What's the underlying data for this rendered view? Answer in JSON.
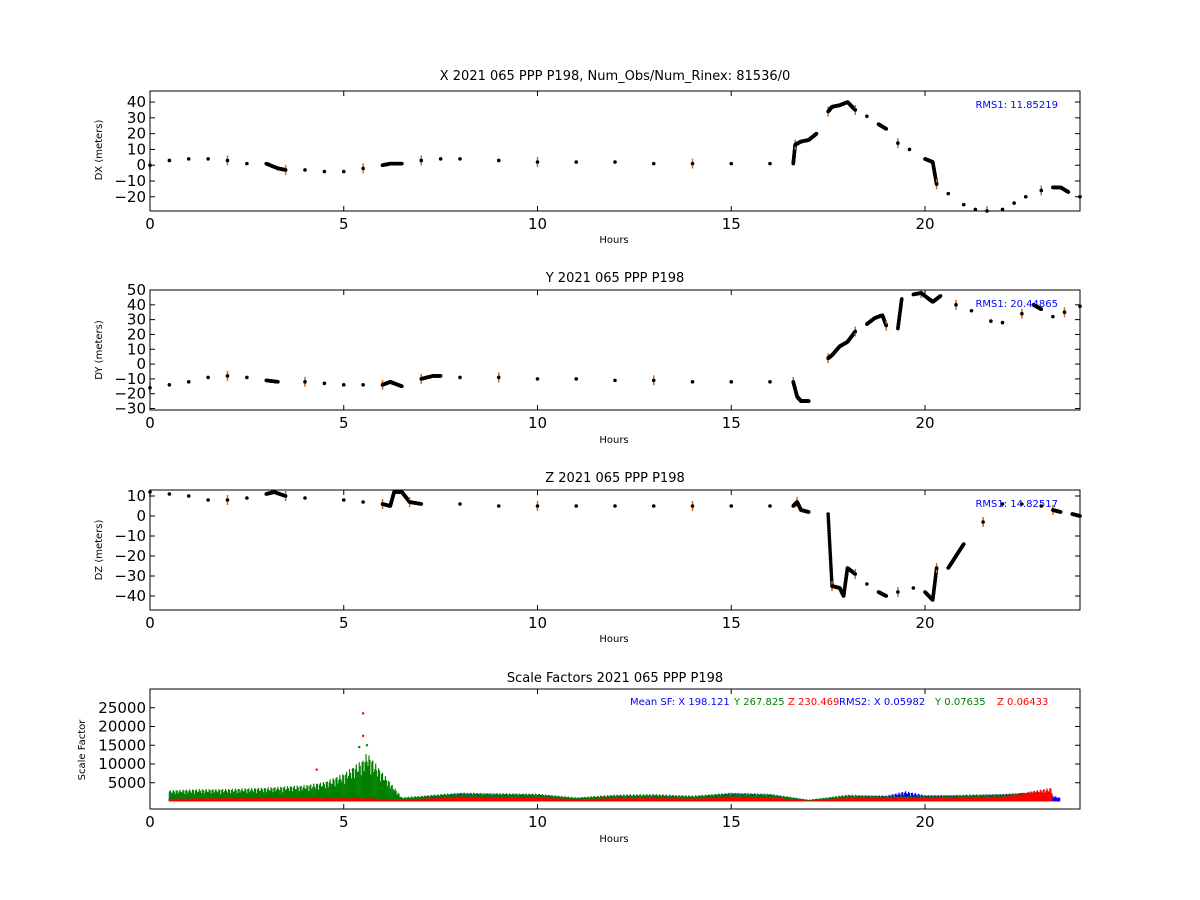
{
  "chart_data": [
    {
      "type": "scatter",
      "title": "X 2021 065 PPP  P198, Num_Obs/Num_Rinex: 81536/0",
      "xlabel": "Hours",
      "ylabel": "DX (meters)",
      "xlim": [
        0,
        24
      ],
      "ylim": [
        -29,
        47
      ],
      "xticks": [
        0,
        5,
        10,
        15,
        20
      ],
      "yticks": [
        -20,
        -10,
        0,
        10,
        20,
        30,
        40
      ],
      "annotation": "RMS1: 11.85219",
      "annotation_color": "#0000ff",
      "series_colors": {
        "points": "#000000",
        "error_bars": "#d2691e"
      },
      "series": [
        {
          "x": [
            0,
            0.5,
            1.0,
            1.5,
            2.0,
            2.5,
            3.0,
            3.3,
            3.5,
            4.0,
            4.5,
            5.0,
            5.5,
            6.0,
            6.2,
            6.5,
            7.0,
            7.5,
            8.0,
            9.0,
            10.0,
            11.0,
            12.0,
            13.0,
            14.0,
            15.0,
            16.0,
            16.6,
            16.65,
            16.8,
            17.0,
            17.2,
            17.5,
            17.6,
            17.8,
            18.0,
            18.2,
            18.5,
            18.8,
            19.0,
            19.3,
            19.6,
            20.0,
            20.2,
            20.3,
            20.6,
            21.0,
            21.3,
            21.6,
            22.0,
            22.3,
            22.6,
            23.0,
            23.3,
            23.5,
            23.7,
            24.0
          ],
          "y": [
            0,
            3,
            4,
            4,
            3,
            1,
            1,
            -2,
            -3,
            -3,
            -4,
            -4,
            -2,
            0,
            1,
            1,
            3,
            4,
            4,
            3,
            2,
            2,
            2,
            1,
            1,
            1,
            1,
            1,
            13,
            15,
            16,
            20,
            34,
            37,
            38,
            40,
            35,
            31,
            26,
            23,
            14,
            10,
            4,
            2,
            -12,
            -18,
            -25,
            -28,
            -29,
            -28,
            -24,
            -20,
            -16,
            -14,
            -14,
            -17,
            -20
          ]
        }
      ]
    },
    {
      "type": "scatter",
      "title": "Y 2021 065 PPP  P198",
      "xlabel": "Hours",
      "ylabel": "DY (meters)",
      "xlim": [
        0,
        24
      ],
      "ylim": [
        -31,
        50
      ],
      "xticks": [
        0,
        5,
        10,
        15,
        20
      ],
      "yticks": [
        -30,
        -20,
        -10,
        0,
        10,
        20,
        30,
        40,
        50
      ],
      "annotation": "RMS1: 20.44865",
      "annotation_color": "#0000ff",
      "series_colors": {
        "points": "#000000",
        "error_bars": "#d2691e"
      },
      "series": [
        {
          "x": [
            0,
            0.5,
            1.0,
            1.5,
            2.0,
            2.5,
            3.0,
            3.3,
            4.0,
            4.5,
            5.0,
            5.5,
            6.0,
            6.2,
            6.3,
            6.5,
            7.0,
            7.3,
            7.5,
            8.0,
            9.0,
            10.0,
            11.0,
            12.0,
            13.0,
            14.0,
            15.0,
            16.0,
            16.6,
            16.7,
            16.8,
            17.0,
            17.5,
            17.6,
            17.8,
            18.0,
            18.2,
            18.5,
            18.7,
            18.9,
            19.0,
            19.3,
            19.4,
            19.7,
            19.9,
            20.1,
            20.2,
            20.4,
            20.8,
            21.2,
            21.7,
            22.0,
            22.5,
            22.8,
            23.0,
            23.3,
            23.6,
            24.0
          ],
          "y": [
            -16,
            -14,
            -12,
            -9,
            -8,
            -9,
            -11,
            -12,
            -12,
            -13,
            -14,
            -14,
            -14,
            -12,
            -13,
            -15,
            -10,
            -8,
            -8,
            -9,
            -9,
            -10,
            -10,
            -11,
            -11,
            -12,
            -12,
            -12,
            -12,
            -22,
            -25,
            -25,
            4,
            6,
            12,
            15,
            22,
            27,
            31,
            33,
            26,
            24,
            44,
            47,
            48,
            44,
            42,
            46,
            40,
            36,
            29,
            28,
            34,
            40,
            37,
            32,
            35,
            39
          ]
        }
      ]
    },
    {
      "type": "scatter",
      "title": "Z 2021 065 PPP  P198",
      "xlabel": "Hours",
      "ylabel": "DZ (meters)",
      "xlim": [
        0,
        24
      ],
      "ylim": [
        -47,
        13
      ],
      "xticks": [
        0,
        5,
        10,
        15,
        20
      ],
      "yticks": [
        -40,
        -30,
        -20,
        -10,
        0,
        10
      ],
      "annotation": "RMS1: 14.82517",
      "annotation_color": "#0000ff",
      "series_colors": {
        "points": "#000000",
        "error_bars": "#d2691e"
      },
      "series": [
        {
          "x": [
            0,
            0.5,
            1.0,
            1.5,
            2.0,
            2.5,
            3.0,
            3.2,
            3.5,
            4.0,
            5.0,
            5.5,
            6.0,
            6.2,
            6.3,
            6.5,
            6.7,
            7.0,
            8.0,
            9.0,
            10.0,
            11.0,
            12.0,
            13.0,
            14.0,
            15.0,
            16.0,
            16.6,
            16.7,
            16.8,
            17.0,
            17.5,
            17.6,
            17.8,
            17.9,
            18.0,
            18.2,
            18.5,
            18.8,
            19.0,
            19.3,
            19.7,
            20.0,
            20.2,
            20.3,
            20.6,
            20.8,
            21.0,
            21.5,
            22.0,
            22.5,
            23.0,
            23.3,
            23.5,
            23.8,
            24.0
          ],
          "y": [
            12,
            11,
            10,
            8,
            8,
            9,
            11,
            12,
            10,
            9,
            8,
            7,
            6,
            5,
            12,
            12,
            7,
            6,
            6,
            5,
            5,
            5,
            5,
            5,
            5,
            5,
            5,
            5,
            7,
            3,
            2,
            1,
            -35,
            -36,
            -40,
            -26,
            -29,
            -34,
            -38,
            -40,
            -38,
            -36,
            -38,
            -42,
            -26,
            -26,
            -20,
            -14,
            -3,
            6,
            6,
            5,
            3,
            2,
            1,
            0
          ]
        }
      ]
    },
    {
      "type": "bar",
      "title": "Scale Factors 2021 065 PPP  P198",
      "xlabel": "Hours",
      "ylabel": "Scale Factor",
      "xlim": [
        0,
        24
      ],
      "ylim": [
        -2000,
        30000
      ],
      "xticks": [
        0,
        5,
        10,
        15,
        20
      ],
      "yticks": [
        5000,
        10000,
        15000,
        20000,
        25000
      ],
      "legend_text": {
        "mean_sf_label": "Mean SF: X 198.121",
        "mean_sf_y": "Y 267.825",
        "mean_sf_z": "Z 230.469",
        "rms2_label": "RMS2: X  0.05982",
        "rms2_y": "Y  0.07635",
        "rms2_z": "Z  0.06433"
      },
      "series": [
        {
          "name": "X",
          "color": "#0000ff",
          "x": [
            0.5,
            1,
            2,
            3,
            4,
            5,
            5.5,
            6.5,
            7.5,
            8,
            9,
            10,
            11,
            12,
            13,
            14,
            15,
            16,
            17,
            18,
            19,
            19.5,
            20,
            21,
            22,
            23,
            23.5
          ],
          "values": [
            1200,
            1300,
            1500,
            1600,
            1500,
            1400,
            1300,
            600,
            1400,
            1800,
            1600,
            1500,
            700,
            1200,
            1300,
            1000,
            1800,
            1500,
            300,
            1200,
            1300,
            2200,
            1400,
            1300,
            1600,
            2000,
            800
          ]
        },
        {
          "name": "Y",
          "color": "#008000",
          "x": [
            0.5,
            1,
            2,
            3,
            4,
            4.5,
            5,
            5.5,
            5.6,
            6.5,
            7.5,
            8,
            9,
            10,
            11,
            12,
            13,
            14,
            15,
            16,
            17,
            18,
            19,
            20,
            21,
            22,
            23
          ],
          "values": [
            2400,
            2600,
            2700,
            3000,
            3500,
            4200,
            6000,
            9000,
            10500,
            900,
            1600,
            1900,
            1800,
            1700,
            900,
            1500,
            1600,
            1300,
            1900,
            1700,
            400,
            1500,
            1200,
            1200,
            1500,
            1600,
            2100
          ]
        },
        {
          "name": "Z",
          "color": "#ff0000",
          "x": [
            0.5,
            1,
            2,
            3,
            4,
            5,
            5.5,
            6.5,
            7.5,
            8,
            9,
            10,
            11,
            12,
            13,
            14,
            15,
            16,
            17,
            18,
            19,
            20,
            21,
            22,
            23,
            23.3
          ],
          "values": [
            600,
            700,
            800,
            900,
            900,
            800,
            800,
            400,
            900,
            1100,
            1000,
            1000,
            500,
            800,
            900,
            700,
            1100,
            1000,
            200,
            900,
            900,
            900,
            1000,
            1100,
            2600,
            3000
          ]
        }
      ],
      "outliers": [
        {
          "x": 5.5,
          "y": 23500,
          "color": "#ff0000"
        },
        {
          "x": 5.5,
          "y": 17500,
          "color": "#ff0000"
        },
        {
          "x": 5.4,
          "y": 14500,
          "color": "#008000"
        },
        {
          "x": 5.6,
          "y": 15000,
          "color": "#008000"
        },
        {
          "x": 4.3,
          "y": 8500,
          "color": "#ff0000"
        }
      ]
    }
  ]
}
